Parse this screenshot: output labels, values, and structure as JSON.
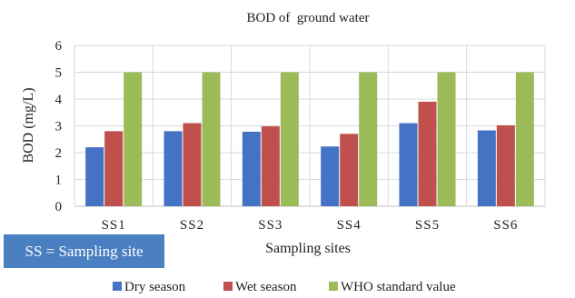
{
  "chart_data": {
    "type": "bar",
    "title": "BOD of  ground water",
    "xlabel": "Sampling sites",
    "ylabel": "BOD (mg/L)",
    "ylim": [
      0,
      6
    ],
    "yticks": [
      "0",
      "1",
      "2",
      "3",
      "4",
      "5",
      "6"
    ],
    "grid": true,
    "legend_position": "bottom",
    "categories": [
      "SS1",
      "SS2",
      "SS3",
      "SS4",
      "SS5",
      "SS6"
    ],
    "series": [
      {
        "name": "Dry season",
        "color": "#4472c4",
        "values": [
          2.2,
          2.8,
          2.78,
          2.23,
          3.1,
          2.83
        ]
      },
      {
        "name": "Wet season",
        "color": "#c0504d",
        "values": [
          2.8,
          3.1,
          2.98,
          2.7,
          3.9,
          3.02
        ]
      },
      {
        "name": "WHO standard value",
        "color": "#9bbb59",
        "values": [
          5,
          5,
          5,
          5,
          5,
          5
        ]
      }
    ]
  },
  "annotation": {
    "text": "SS = Sampling site",
    "background": "#4a7fc1"
  }
}
